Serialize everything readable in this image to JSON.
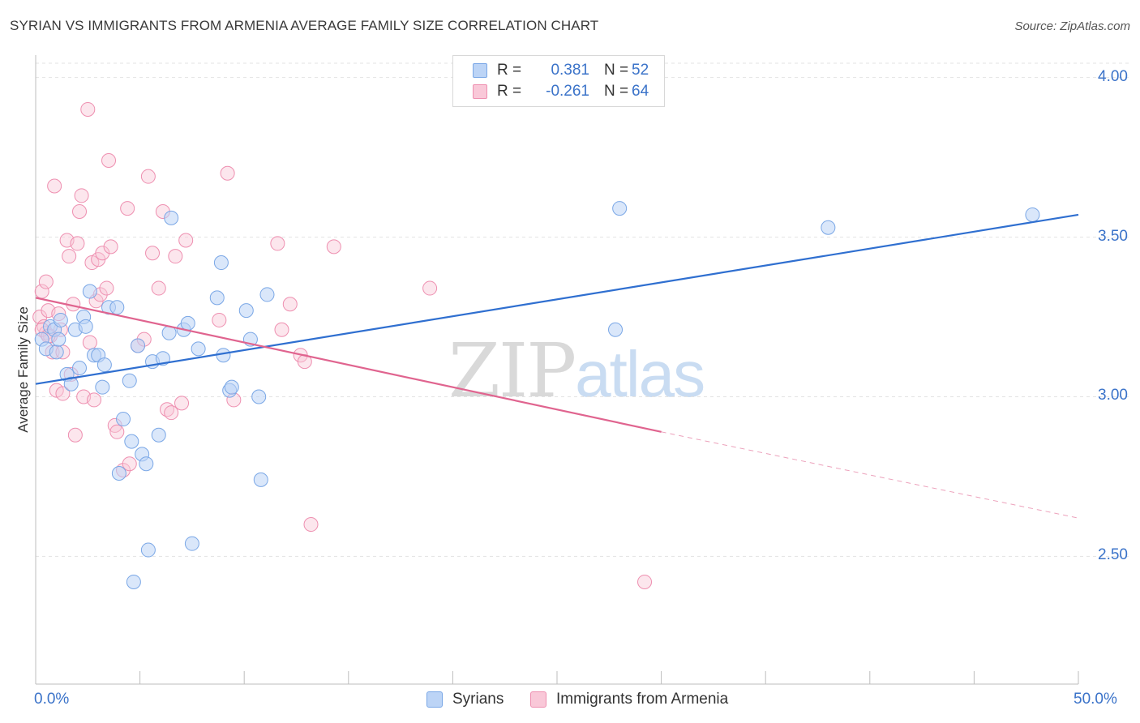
{
  "title": "SYRIAN VS IMMIGRANTS FROM ARMENIA AVERAGE FAMILY SIZE CORRELATION CHART",
  "source": "Source: ZipAtlas.com",
  "watermark": {
    "zip": "ZIP",
    "atlas": "atlas"
  },
  "legend": {
    "r_label": "R =",
    "n_label": "N =",
    "syrians": {
      "r": "0.381",
      "n": "52"
    },
    "armenia": {
      "r": "-0.261",
      "n": "64"
    }
  },
  "colors": {
    "blue": "#2f6fd0",
    "blue_fill": "#bcd4f6",
    "blue_stroke": "#7aa7e6",
    "pink": "#e0648f",
    "pink_fill": "#f9c8d8",
    "pink_stroke": "#ee8fb0",
    "label_blue": "#3b73c9"
  },
  "chart_data": {
    "type": "scatter",
    "title": "SYRIAN VS IMMIGRANTS FROM ARMENIA AVERAGE FAMILY SIZE CORRELATION CHART",
    "xlabel": "",
    "ylabel": "Average Family Size",
    "xlim": [
      0,
      50
    ],
    "ylim": [
      2.1,
      4.07
    ],
    "x_tick_labels": [
      "0.0%",
      "50.0%"
    ],
    "y_ticks": [
      2.5,
      3.0,
      3.5,
      4.0
    ],
    "y_tick_labels": [
      "2.50",
      "3.00",
      "3.50",
      "4.00"
    ],
    "grid": true,
    "legend_position": "top-center",
    "series": [
      {
        "name": "Syrians",
        "color": "#2f6fd0",
        "trend": {
          "x0": 0,
          "y0": 3.04,
          "x1": 50,
          "y1": 3.57
        },
        "points": [
          [
            0.3,
            3.18
          ],
          [
            0.5,
            3.15
          ],
          [
            0.7,
            3.22
          ],
          [
            0.9,
            3.21
          ],
          [
            1.0,
            3.14
          ],
          [
            1.1,
            3.18
          ],
          [
            1.2,
            3.24
          ],
          [
            1.5,
            3.07
          ],
          [
            1.7,
            3.04
          ],
          [
            1.9,
            3.21
          ],
          [
            2.1,
            3.09
          ],
          [
            2.3,
            3.25
          ],
          [
            2.4,
            3.22
          ],
          [
            2.6,
            3.33
          ],
          [
            2.8,
            3.13
          ],
          [
            3.0,
            3.13
          ],
          [
            3.2,
            3.03
          ],
          [
            3.3,
            3.1
          ],
          [
            3.5,
            3.28
          ],
          [
            3.9,
            3.28
          ],
          [
            4.0,
            2.76
          ],
          [
            4.2,
            2.93
          ],
          [
            4.5,
            3.05
          ],
          [
            4.6,
            2.86
          ],
          [
            4.7,
            2.42
          ],
          [
            4.9,
            3.16
          ],
          [
            5.1,
            2.82
          ],
          [
            5.3,
            2.79
          ],
          [
            5.4,
            2.52
          ],
          [
            5.6,
            3.11
          ],
          [
            5.9,
            2.88
          ],
          [
            6.1,
            3.12
          ],
          [
            6.4,
            3.2
          ],
          [
            6.5,
            3.56
          ],
          [
            7.1,
            3.21
          ],
          [
            7.3,
            3.23
          ],
          [
            7.5,
            2.54
          ],
          [
            7.8,
            3.15
          ],
          [
            8.7,
            3.31
          ],
          [
            8.9,
            3.42
          ],
          [
            9.0,
            3.13
          ],
          [
            9.3,
            3.02
          ],
          [
            9.4,
            3.03
          ],
          [
            10.1,
            3.27
          ],
          [
            10.3,
            3.18
          ],
          [
            10.7,
            3.0
          ],
          [
            10.8,
            2.74
          ],
          [
            11.1,
            3.32
          ],
          [
            27.8,
            3.21
          ],
          [
            28.0,
            3.59
          ],
          [
            38.0,
            3.53
          ],
          [
            47.8,
            3.57
          ]
        ]
      },
      {
        "name": "Immigrants from Armenia",
        "color": "#e0648f",
        "trend": {
          "x0": 0,
          "y0": 3.31,
          "x1": 30,
          "y1": 2.89
        },
        "trend_dashed": {
          "x0": 30,
          "y0": 2.89,
          "x1": 50,
          "y1": 2.62
        },
        "points": [
          [
            0.2,
            3.25
          ],
          [
            0.3,
            3.33
          ],
          [
            0.4,
            3.22
          ],
          [
            0.5,
            3.2
          ],
          [
            0.5,
            3.36
          ],
          [
            0.6,
            3.27
          ],
          [
            0.7,
            3.19
          ],
          [
            0.8,
            3.14
          ],
          [
            0.9,
            3.66
          ],
          [
            1.0,
            3.02
          ],
          [
            1.1,
            3.26
          ],
          [
            1.2,
            3.21
          ],
          [
            1.3,
            3.01
          ],
          [
            1.3,
            3.14
          ],
          [
            1.5,
            3.49
          ],
          [
            1.6,
            3.44
          ],
          [
            1.7,
            3.07
          ],
          [
            1.8,
            3.29
          ],
          [
            1.9,
            2.88
          ],
          [
            2.0,
            3.48
          ],
          [
            2.1,
            3.58
          ],
          [
            2.2,
            3.63
          ],
          [
            2.3,
            3.0
          ],
          [
            2.5,
            3.9
          ],
          [
            2.6,
            3.17
          ],
          [
            2.7,
            3.42
          ],
          [
            2.8,
            2.99
          ],
          [
            2.9,
            3.3
          ],
          [
            3.0,
            3.43
          ],
          [
            3.1,
            3.32
          ],
          [
            3.2,
            3.45
          ],
          [
            3.4,
            3.34
          ],
          [
            3.5,
            3.74
          ],
          [
            3.6,
            3.47
          ],
          [
            3.8,
            2.91
          ],
          [
            3.9,
            2.89
          ],
          [
            4.2,
            2.77
          ],
          [
            4.4,
            3.59
          ],
          [
            4.5,
            2.79
          ],
          [
            4.9,
            3.16
          ],
          [
            5.2,
            3.18
          ],
          [
            5.4,
            3.69
          ],
          [
            5.6,
            3.45
          ],
          [
            5.9,
            3.34
          ],
          [
            6.1,
            3.58
          ],
          [
            6.3,
            2.96
          ],
          [
            6.5,
            2.95
          ],
          [
            6.7,
            3.44
          ],
          [
            7.0,
            2.98
          ],
          [
            7.2,
            3.49
          ],
          [
            8.8,
            3.24
          ],
          [
            9.2,
            3.7
          ],
          [
            9.5,
            2.99
          ],
          [
            11.6,
            3.48
          ],
          [
            11.8,
            3.21
          ],
          [
            12.2,
            3.29
          ],
          [
            12.7,
            3.13
          ],
          [
            12.9,
            3.11
          ],
          [
            13.2,
            2.6
          ],
          [
            14.3,
            3.47
          ],
          [
            18.9,
            3.34
          ],
          [
            29.2,
            2.42
          ],
          [
            0.3,
            3.21
          ],
          [
            0.6,
            3.19
          ]
        ]
      }
    ]
  },
  "bottom_legend": [
    "Syrians",
    "Immigrants from Armenia"
  ]
}
